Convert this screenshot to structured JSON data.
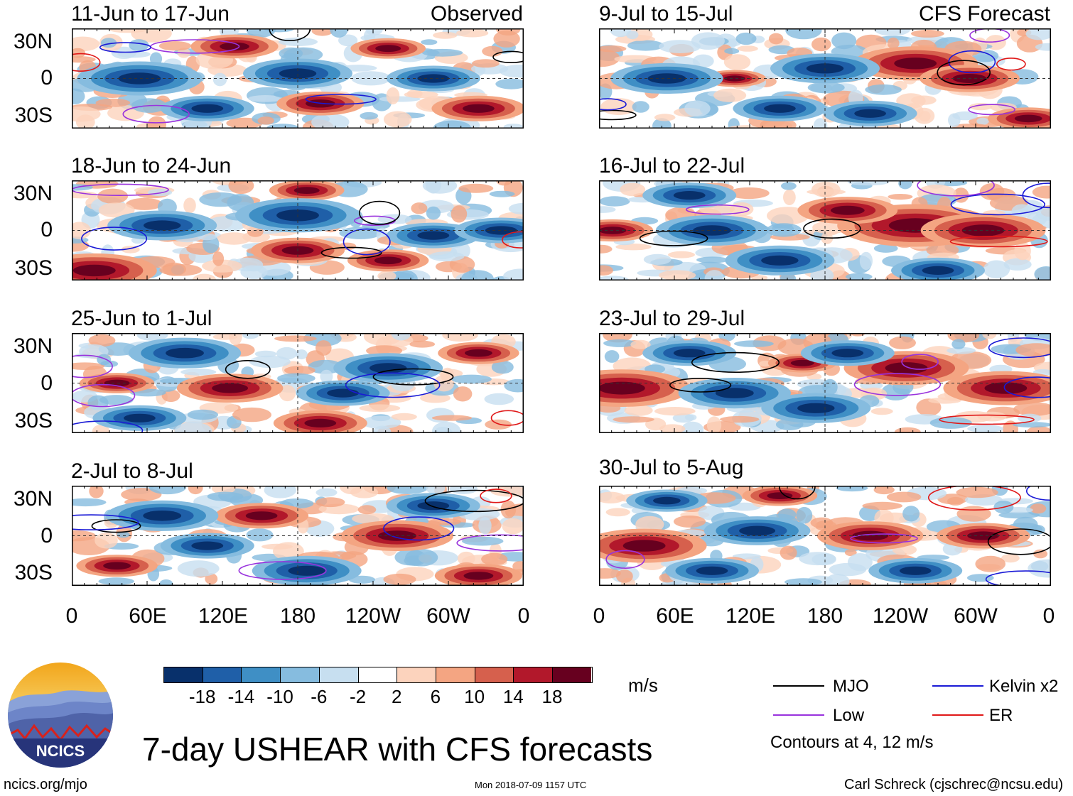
{
  "title": "7-day USHEAR with CFS forecasts",
  "panels_left": {
    "header_tag": "Observed",
    "periods": [
      "11-Jun to 17-Jun",
      "18-Jun to 24-Jun",
      "25-Jun to 1-Jul",
      "2-Jul to 8-Jul"
    ]
  },
  "panels_right": {
    "header_tag": "CFS Forecast",
    "periods": [
      "9-Jul to 15-Jul",
      "16-Jul to 22-Jul",
      "23-Jul to 29-Jul",
      "30-Jul to 5-Aug"
    ]
  },
  "lat_labels": [
    "30N",
    "0",
    "30S"
  ],
  "lon_labels": [
    "0",
    "60E",
    "120E",
    "180",
    "120W",
    "60W",
    "0"
  ],
  "colorbar": {
    "units": "m/s",
    "ticks": [
      "-18",
      "-14",
      "-10",
      "-6",
      "-2",
      "2",
      "6",
      "10",
      "14",
      "18"
    ],
    "colors": [
      "#08306b",
      "#1f5fa8",
      "#3f8fc5",
      "#86bcdf",
      "#c7dff0",
      "#ffffff",
      "#fcd3bd",
      "#f4a582",
      "#d6604d",
      "#b2182b",
      "#67001f"
    ]
  },
  "legend": {
    "items": [
      {
        "label": "MJO",
        "color": "#000000"
      },
      {
        "label": "Kelvin x2",
        "color": "#1a1ad6"
      },
      {
        "label": "Low",
        "color": "#9933dd"
      },
      {
        "label": "ER",
        "color": "#e01818"
      }
    ],
    "note": "Contours at 4, 12 m/s"
  },
  "logo": {
    "text": "NCICS"
  },
  "footer": {
    "url": "ncics.org/mjo",
    "timestamp": "Mon 2018-07-09 1157 UTC",
    "credit": "Carl Schreck (cjschrec@ncsu.edu)"
  }
}
